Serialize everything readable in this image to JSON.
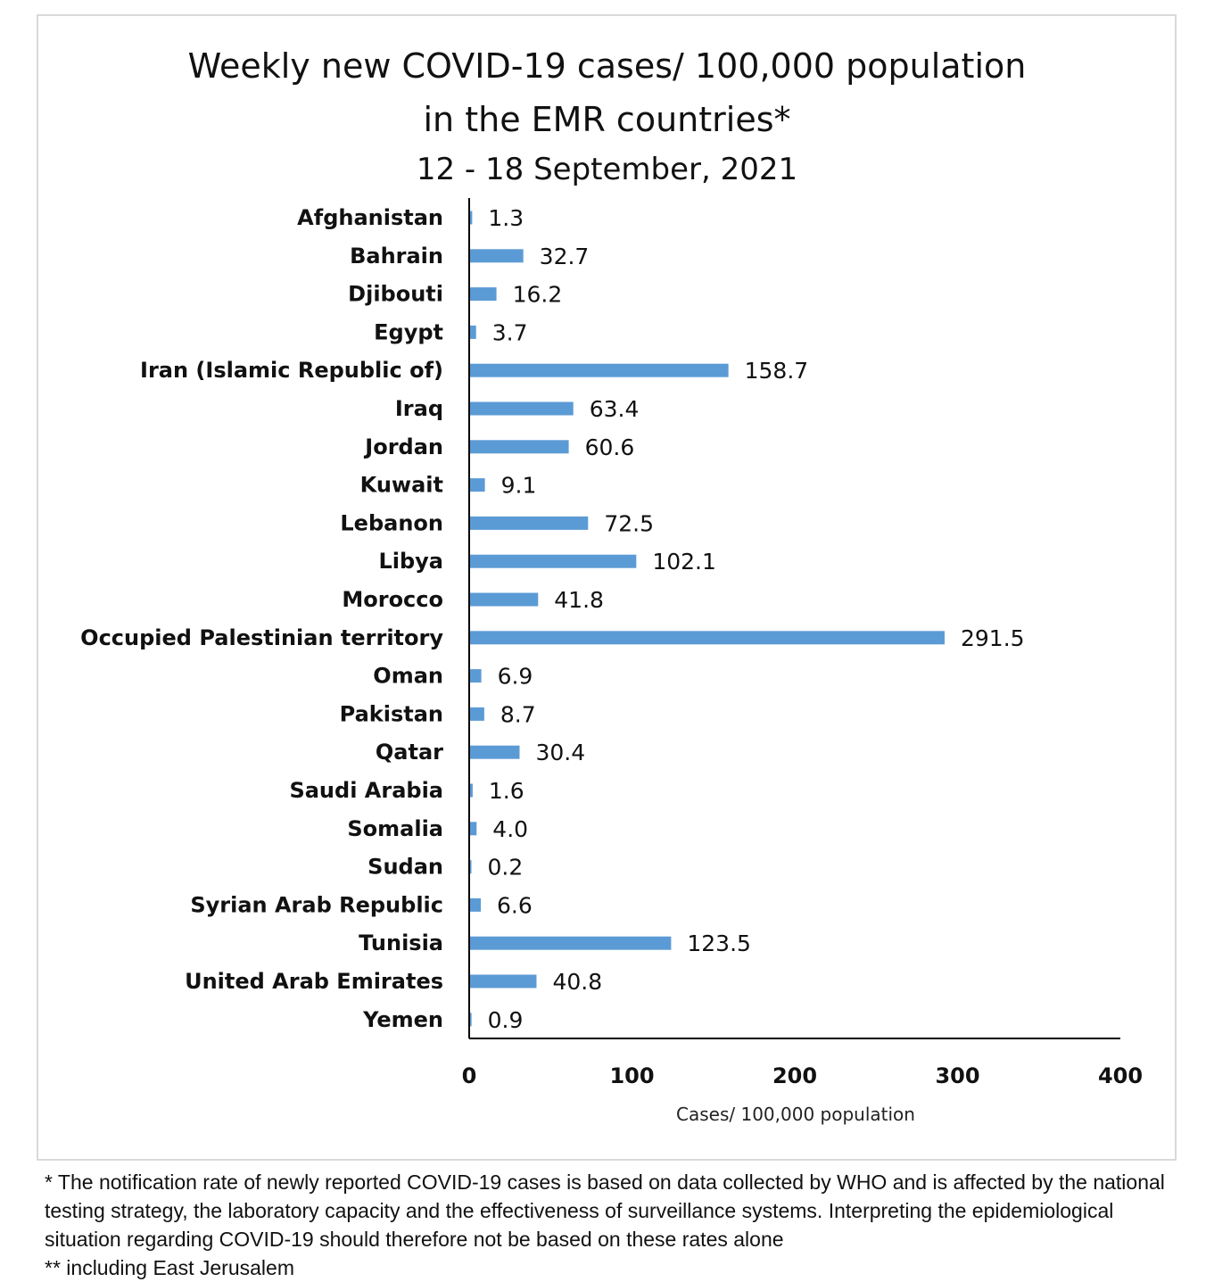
{
  "chart_data": {
    "type": "bar",
    "orientation": "horizontal",
    "title": "Weekly new COVID-19 cases/ 100,000 population",
    "title_line2": "in the EMR countries*",
    "subtitle": "12 - 18 September, 2021",
    "xlabel": "Cases/ 100,000 population",
    "xlim": [
      0,
      400
    ],
    "xticks": [
      "0",
      "100",
      "200",
      "300",
      "400"
    ],
    "grid": false,
    "bar_color": "#5b9bd5",
    "categories": [
      "Afghanistan",
      "Bahrain",
      "Djibouti",
      "Egypt",
      "Iran (Islamic Republic of)",
      "Iraq",
      "Jordan",
      "Kuwait",
      "Lebanon",
      "Libya",
      "Morocco",
      "Occupied Palestinian territory",
      "Oman",
      "Pakistan",
      "Qatar",
      "Saudi Arabia",
      "Somalia",
      "Sudan",
      "Syrian Arab Republic",
      "Tunisia",
      "United Arab Emirates",
      "Yemen"
    ],
    "values": [
      1.3,
      32.7,
      16.2,
      3.7,
      158.7,
      63.4,
      60.6,
      9.1,
      72.5,
      102.1,
      41.8,
      291.5,
      6.9,
      8.7,
      30.4,
      1.6,
      4.0,
      0.2,
      6.6,
      123.5,
      40.8,
      0.9
    ],
    "labels": [
      "1.3",
      "32.7",
      "16.2",
      "3.7",
      "158.7",
      "63.4",
      "60.6",
      "9.1",
      "72.5",
      "102.1",
      "41.8",
      "291.5",
      "6.9",
      "8.7",
      "30.4",
      "1.6",
      "4.0",
      "0.2",
      "6.6",
      "123.5",
      "40.8",
      "0.9"
    ]
  },
  "footnote": {
    "note1": "* The notification rate of newly reported COVID-19 cases is based on data collected by WHO and is affected by the national testing strategy, the laboratory capacity and the effectiveness of surveillance systems. Interpreting the epidemiological situation regarding COVID-19 should therefore not be based on these rates alone",
    "note2": "** including East Jerusalem"
  }
}
